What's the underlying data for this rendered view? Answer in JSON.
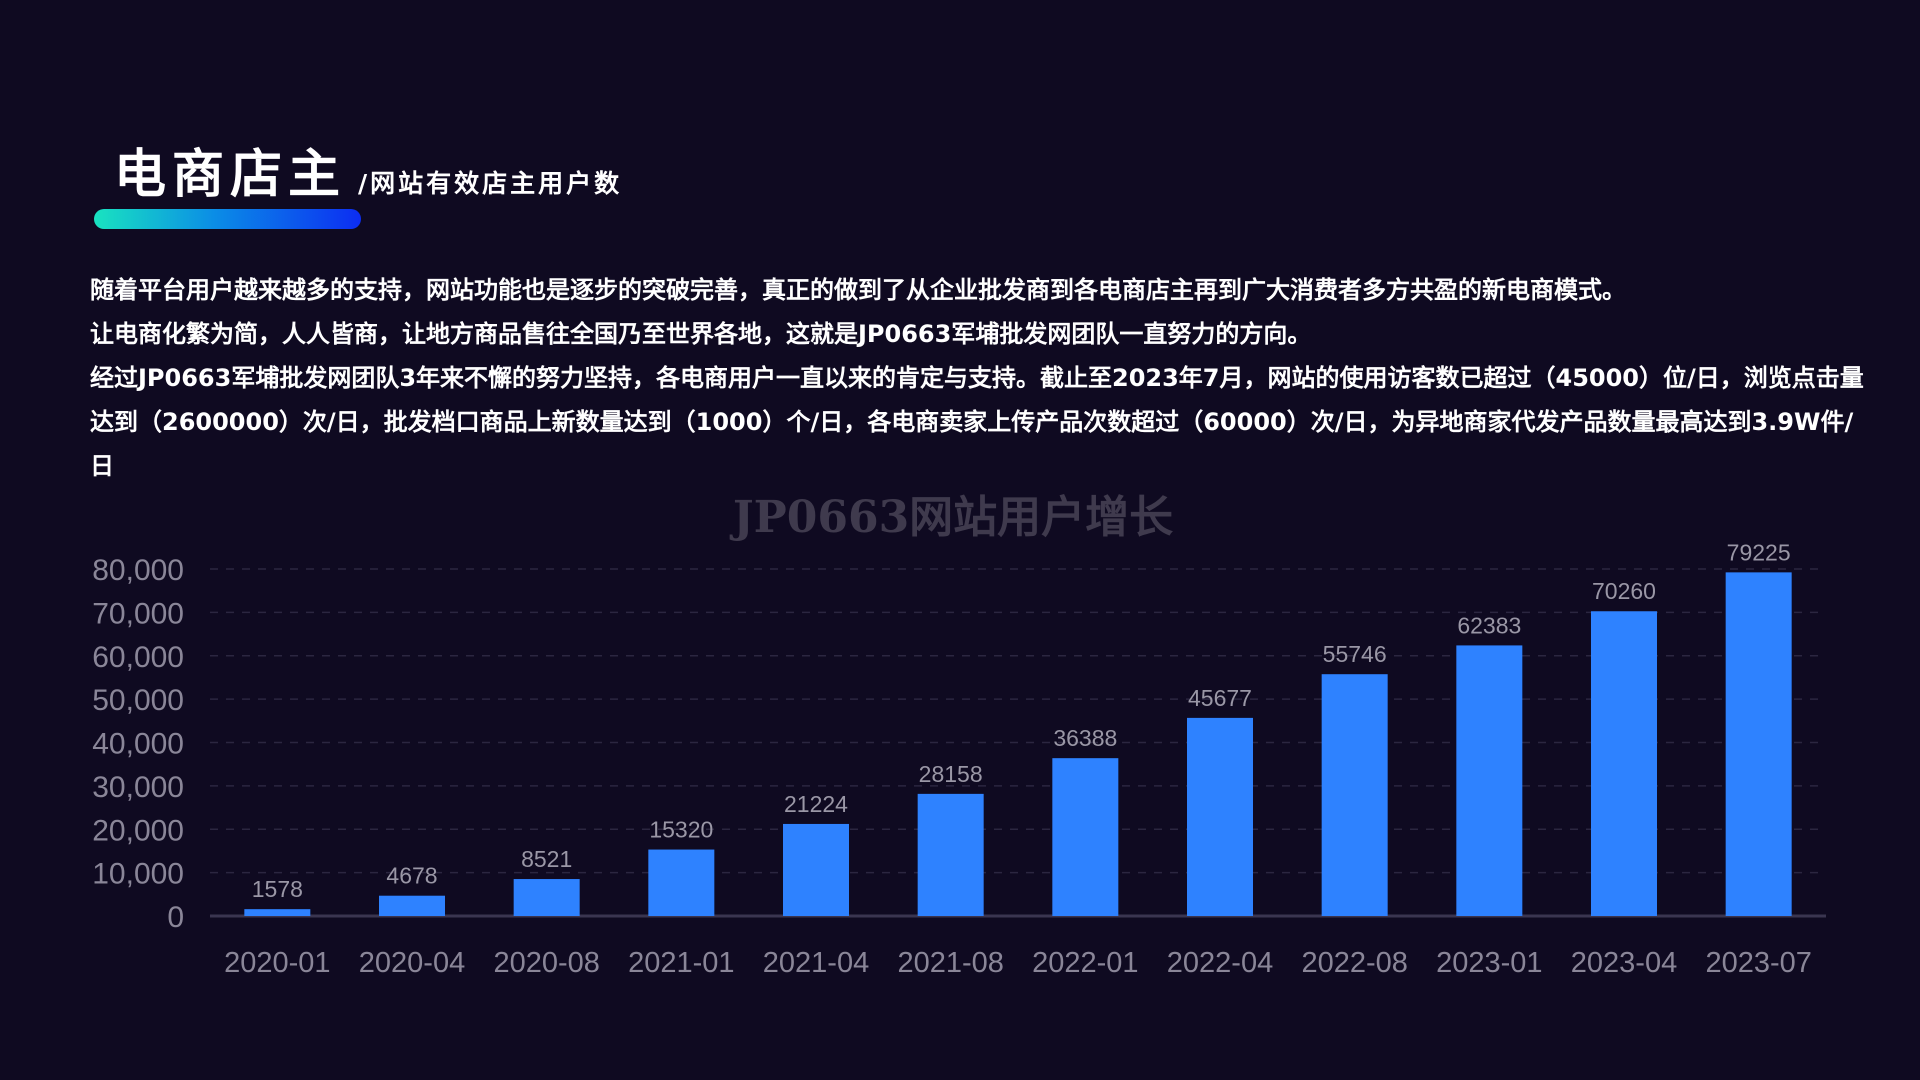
{
  "header": {
    "title": "电商店主",
    "subtitle": "/网站有效店主用户数"
  },
  "intro": {
    "p1": "随着平台用户越来越多的支持，网站功能也是逐步的突破完善，真正的做到了从企业批发商到各电商店主再到广大消费者多方共盈的新电商模式。",
    "p2": "让电商化繁为简，人人皆商，让地方商品售往全国乃至世界各地，这就是JP0663军埔批发网团队一直努力的方向。",
    "p3": "经过JP0663军埔批发网团队3年来不懈的努力坚持，各电商用户一直以来的肯定与支持。截止至2023年7月，网站的使用访客数已超过（45000）位/日，浏览点击量达到（2600000）次/日，批发档口商品上新数量达到（1000）个/日，各电商卖家上传产品次数超过（60000）次/日，为异地商家代发产品数量最高达到3.9W件/日"
  },
  "colors": {
    "background": "#0f0a21",
    "bar": "#2e82ff",
    "accent_start": "#19e3c0",
    "accent_end": "#0c2df2"
  },
  "chart_data": {
    "type": "bar",
    "title": "JP0663网站用户增长",
    "categories": [
      "2020-01",
      "2020-04",
      "2020-08",
      "2021-01",
      "2021-04",
      "2021-08",
      "2022-01",
      "2022-04",
      "2022-08",
      "2023-01",
      "2023-04",
      "2023-07"
    ],
    "values": [
      1578,
      4678,
      8521,
      15320,
      21224,
      28158,
      36388,
      45677,
      55746,
      62383,
      70260,
      79225
    ],
    "y_ticks": [
      "0",
      "10,000",
      "20,000",
      "30,000",
      "40,000",
      "50,000",
      "60,000",
      "70,000",
      "80,000"
    ],
    "ylim": [
      0,
      80000
    ],
    "grid": "horizontal-dashed",
    "data_labels": true,
    "legend": "none"
  }
}
